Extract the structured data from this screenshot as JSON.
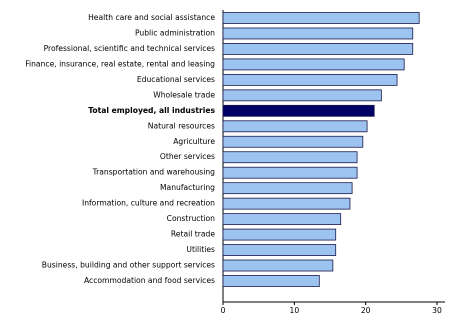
{
  "chart_data": {
    "type": "barh",
    "categories": [
      "Health care and social assistance",
      "Public administration",
      "Professional, scientific and technical services",
      "Finance, insurance, real estate, rental and leasing",
      "Educational services",
      "Wholesale trade",
      "Total employed, all industries",
      "Natural resources",
      "Agriculture",
      "Other services",
      "Transportation and warehousing",
      "Manufacturing",
      "Information, culture and recreation",
      "Construction",
      "Retail trade",
      "Utilities",
      "Business, building and other support services",
      "Accommodation and food services"
    ],
    "values": [
      27.5,
      26.6,
      26.6,
      25.4,
      24.4,
      22.2,
      21.2,
      20.2,
      19.6,
      18.8,
      18.8,
      18.1,
      17.8,
      16.5,
      15.8,
      15.8,
      15.4,
      13.5
    ],
    "colors": [
      "#9dc3f0",
      "#9dc3f0",
      "#9dc3f0",
      "#9dc3f0",
      "#9dc3f0",
      "#9dc3f0",
      "#000066",
      "#9dc3f0",
      "#9dc3f0",
      "#9dc3f0",
      "#9dc3f0",
      "#9dc3f0",
      "#9dc3f0",
      "#9dc3f0",
      "#9dc3f0",
      "#9dc3f0",
      "#9dc3f0",
      "#9dc3f0"
    ],
    "xlim": [
      0,
      30
    ],
    "xticks": [
      0,
      10,
      20,
      30
    ]
  }
}
